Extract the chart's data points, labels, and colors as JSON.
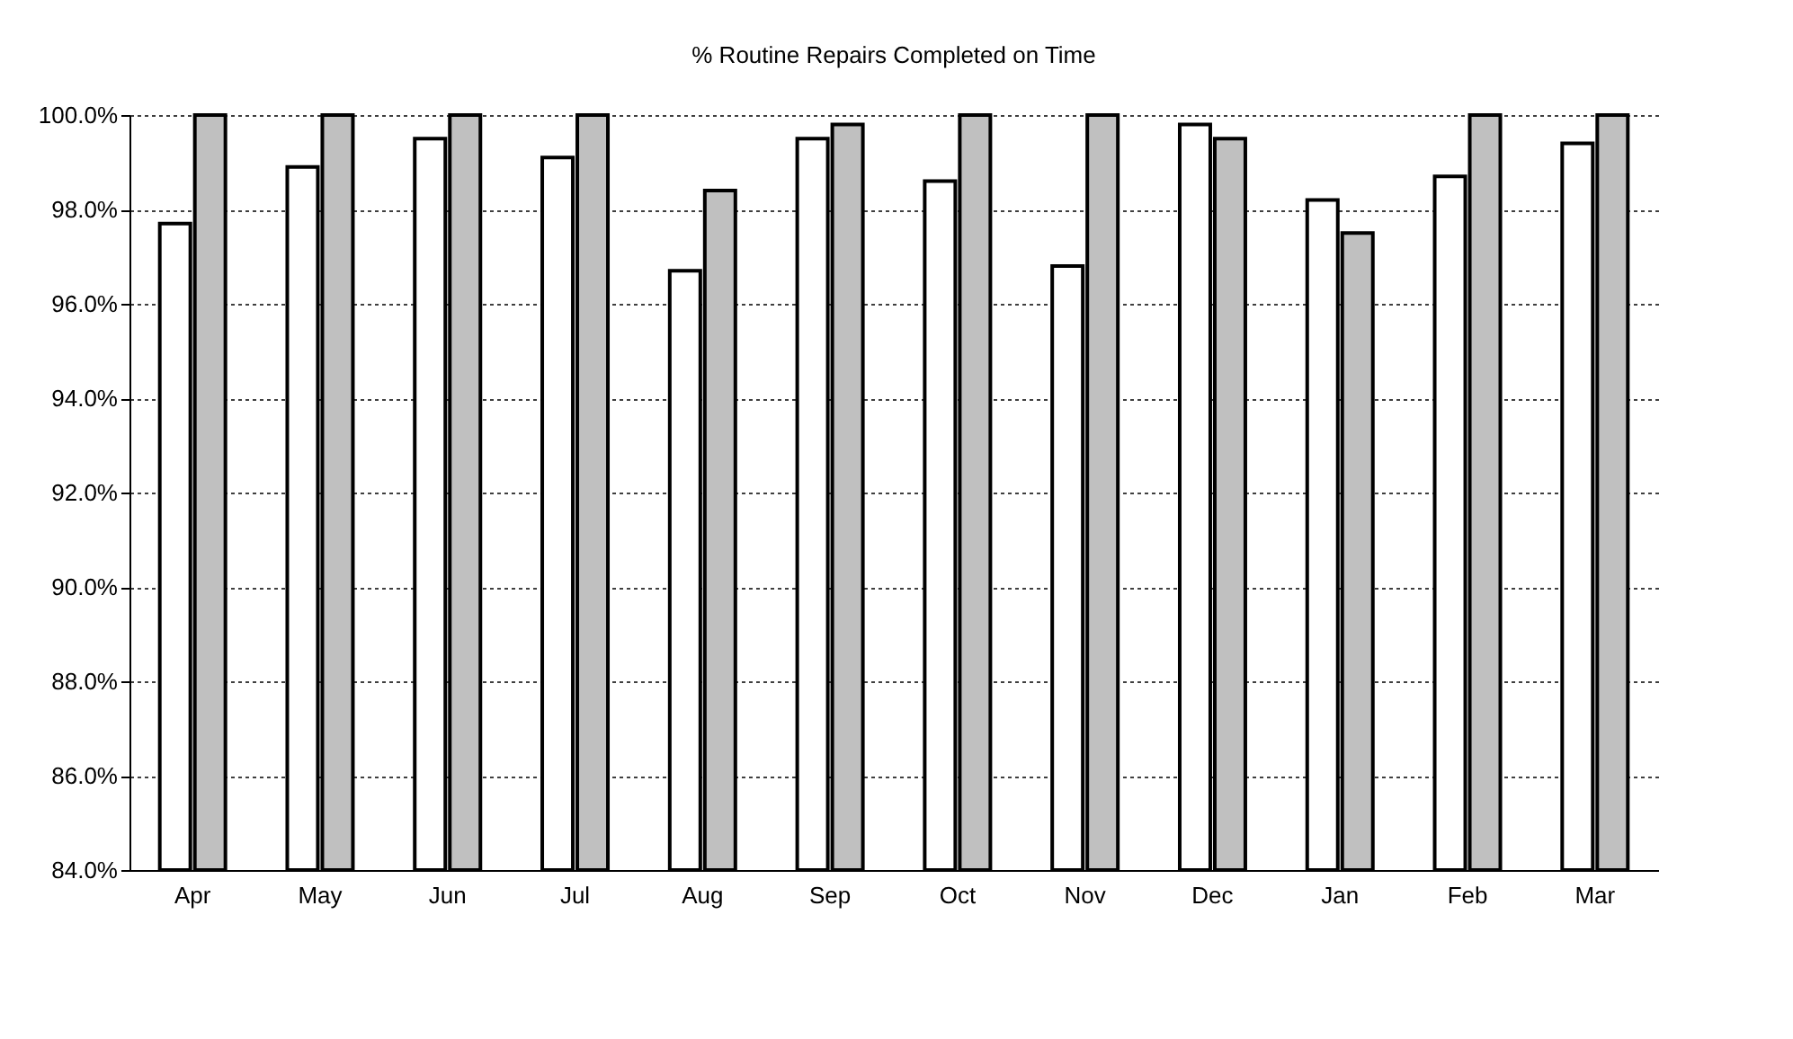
{
  "chart_data": {
    "type": "bar",
    "title": "% Routine Repairs Completed on Time",
    "categories": [
      "Apr",
      "May",
      "Jun",
      "Jul",
      "Aug",
      "Sep",
      "Oct",
      "Nov",
      "Dec",
      "Jan",
      "Feb",
      "Mar"
    ],
    "series": [
      {
        "color": "#ffffff",
        "values": [
          97.7,
          98.9,
          99.5,
          99.1,
          96.7,
          99.5,
          98.6,
          96.8,
          99.8,
          98.2,
          98.7,
          99.4
        ]
      },
      {
        "color": "#c0c0c0",
        "values": [
          100,
          100,
          100,
          100,
          98.4,
          99.8,
          100,
          100,
          99.5,
          97.5,
          100,
          100
        ]
      }
    ],
    "ylim": [
      84,
      100
    ],
    "yticks": [
      {
        "value": 84,
        "label": "84.0%"
      },
      {
        "value": 86,
        "label": "86.0%"
      },
      {
        "value": 88,
        "label": "88.0%"
      },
      {
        "value": 90,
        "label": "90.0%"
      },
      {
        "value": 92,
        "label": "92.0%"
      },
      {
        "value": 94,
        "label": "94.0%"
      },
      {
        "value": 96,
        "label": "96.0%"
      },
      {
        "value": 98,
        "label": "98.0%"
      },
      {
        "value": 100,
        "label": "100.0%"
      }
    ],
    "grid": "y",
    "legend": false
  }
}
